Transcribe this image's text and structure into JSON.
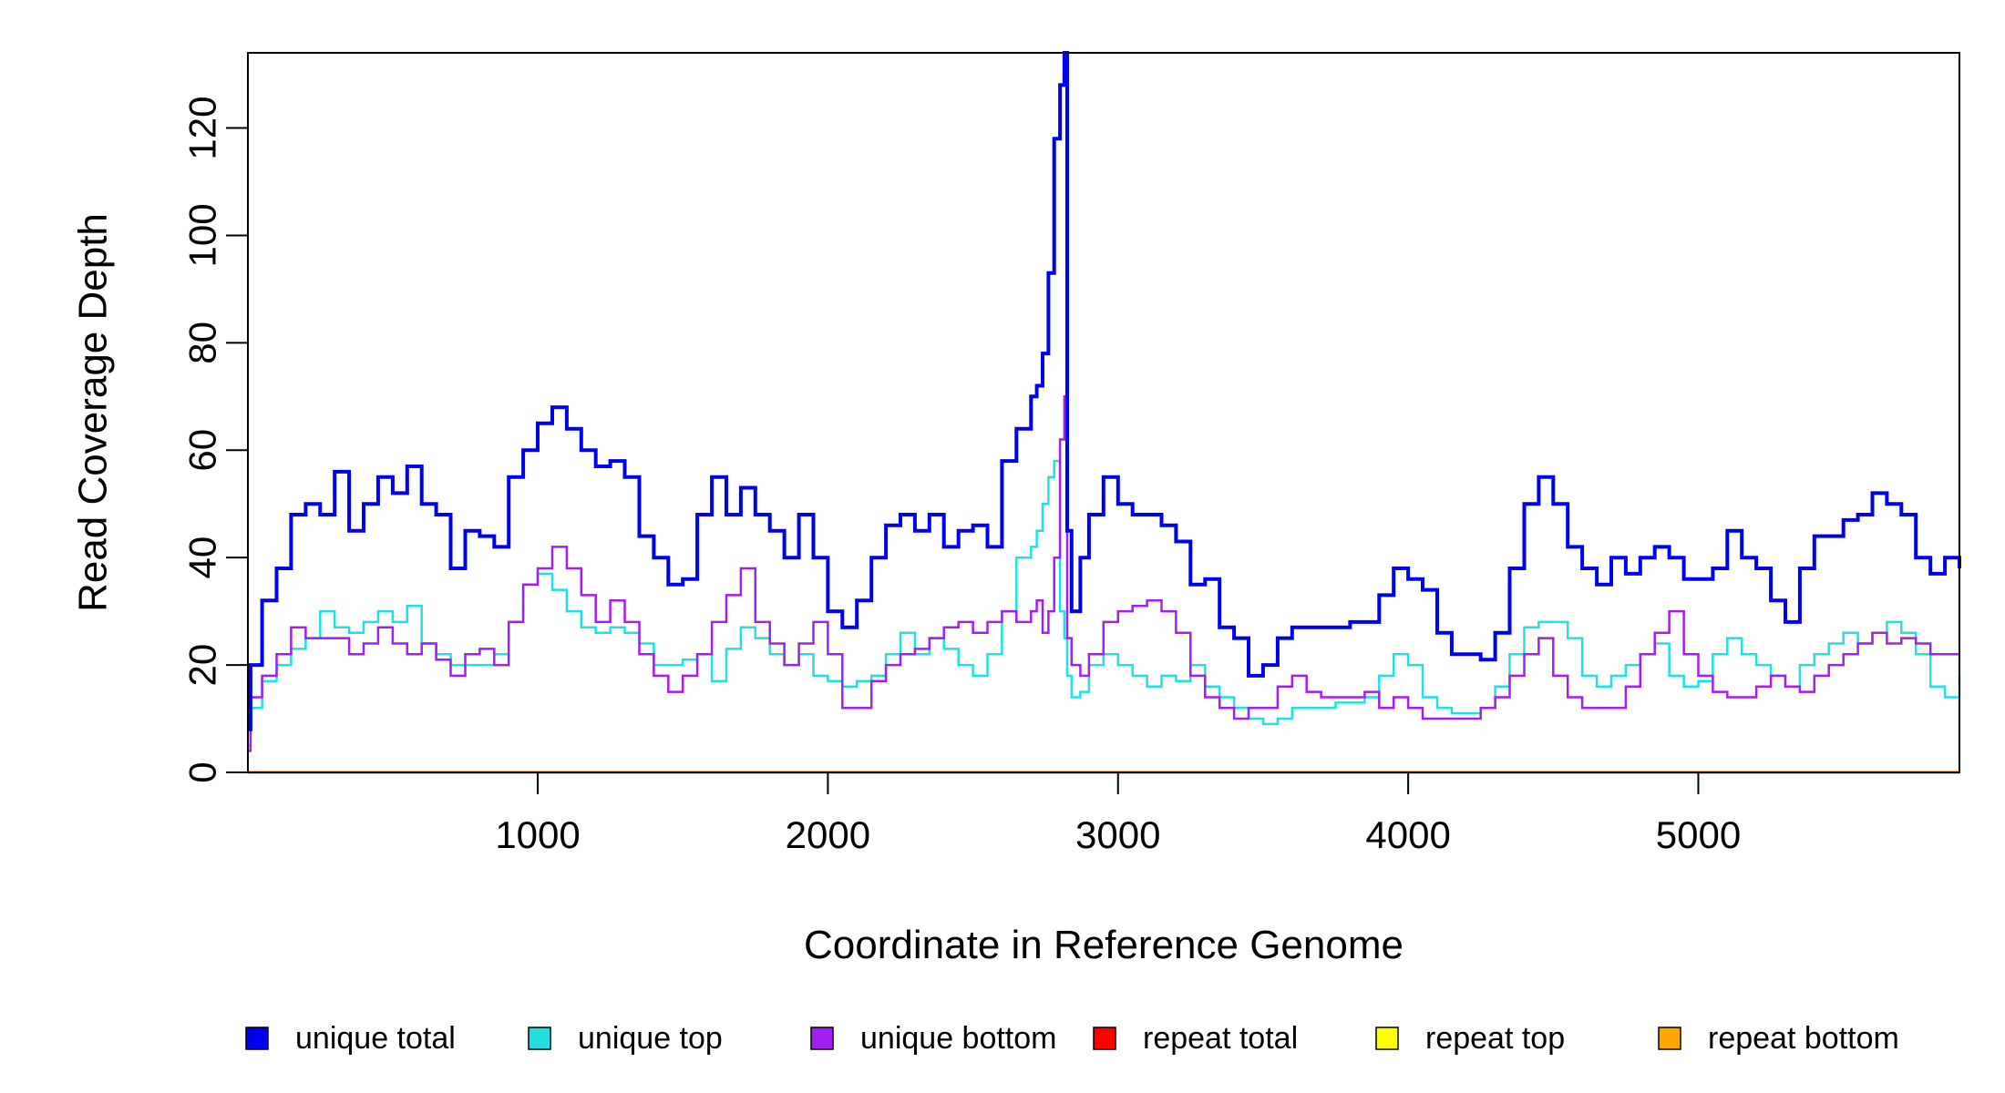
{
  "chart_data": {
    "type": "line",
    "title": "",
    "xlabel": "Coordinate in Reference Genome",
    "ylabel": "Read Coverage Depth",
    "xlim": [
      1,
      5900
    ],
    "ylim": [
      0,
      134
    ],
    "xticks": [
      1000,
      2000,
      3000,
      4000,
      5000
    ],
    "yticks": [
      0,
      20,
      40,
      60,
      80,
      100,
      120
    ],
    "xtick_labels": [
      "1000",
      "2000",
      "3000",
      "4000",
      "5000"
    ],
    "ytick_labels": [
      "0",
      "20",
      "40",
      "60",
      "80",
      "100",
      "120"
    ],
    "grid": false,
    "legend_position": "bottom",
    "series": [
      {
        "name": "unique total",
        "color": "#0000ee",
        "x": [
          1,
          10,
          50,
          100,
          150,
          200,
          250,
          300,
          350,
          400,
          450,
          500,
          550,
          600,
          650,
          700,
          750,
          800,
          850,
          900,
          950,
          1000,
          1050,
          1100,
          1150,
          1200,
          1250,
          1300,
          1350,
          1400,
          1450,
          1500,
          1550,
          1600,
          1650,
          1700,
          1750,
          1800,
          1850,
          1900,
          1950,
          2000,
          2050,
          2100,
          2150,
          2200,
          2250,
          2300,
          2350,
          2400,
          2450,
          2500,
          2550,
          2600,
          2650,
          2700,
          2720,
          2740,
          2760,
          2780,
          2800,
          2815,
          2825,
          2840,
          2870,
          2900,
          2950,
          3000,
          3050,
          3100,
          3150,
          3200,
          3250,
          3300,
          3350,
          3400,
          3450,
          3500,
          3550,
          3600,
          3650,
          3700,
          3750,
          3800,
          3850,
          3900,
          3950,
          4000,
          4050,
          4100,
          4150,
          4200,
          4250,
          4300,
          4350,
          4400,
          4450,
          4500,
          4550,
          4600,
          4650,
          4700,
          4750,
          4800,
          4850,
          4900,
          4950,
          5000,
          5050,
          5100,
          5150,
          5200,
          5250,
          5300,
          5350,
          5400,
          5450,
          5500,
          5550,
          5600,
          5650,
          5700,
          5750,
          5800,
          5850,
          5900
        ],
        "y": [
          8,
          20,
          32,
          38,
          48,
          50,
          48,
          56,
          45,
          50,
          55,
          52,
          57,
          50,
          48,
          38,
          45,
          44,
          42,
          55,
          60,
          65,
          68,
          64,
          60,
          57,
          58,
          55,
          44,
          40,
          35,
          36,
          48,
          55,
          48,
          53,
          48,
          45,
          40,
          48,
          40,
          30,
          27,
          32,
          40,
          46,
          48,
          45,
          48,
          42,
          45,
          46,
          42,
          58,
          64,
          70,
          72,
          78,
          93,
          118,
          128,
          134,
          45,
          30,
          40,
          48,
          55,
          50,
          48,
          48,
          46,
          43,
          35,
          36,
          27,
          25,
          18,
          20,
          25,
          27,
          27,
          27,
          27,
          28,
          28,
          33,
          38,
          36,
          34,
          26,
          22,
          22,
          21,
          26,
          38,
          50,
          55,
          50,
          42,
          38,
          35,
          40,
          37,
          40,
          42,
          40,
          36,
          36,
          38,
          45,
          40,
          38,
          32,
          28,
          38,
          44,
          44,
          47,
          48,
          52,
          50,
          48,
          40,
          37,
          40,
          38
        ]
      },
      {
        "name": "unique top",
        "color": "#22e0e0",
        "x": [
          1,
          10,
          50,
          100,
          150,
          200,
          250,
          300,
          350,
          400,
          450,
          500,
          550,
          600,
          650,
          700,
          750,
          800,
          850,
          900,
          950,
          1000,
          1050,
          1100,
          1150,
          1200,
          1250,
          1300,
          1350,
          1400,
          1450,
          1500,
          1550,
          1600,
          1650,
          1700,
          1750,
          1800,
          1850,
          1900,
          1950,
          2000,
          2050,
          2100,
          2150,
          2200,
          2250,
          2300,
          2350,
          2400,
          2450,
          2500,
          2550,
          2600,
          2650,
          2700,
          2720,
          2740,
          2760,
          2780,
          2800,
          2815,
          2825,
          2840,
          2870,
          2900,
          2950,
          3000,
          3050,
          3100,
          3150,
          3200,
          3250,
          3300,
          3350,
          3400,
          3450,
          3500,
          3550,
          3600,
          3650,
          3700,
          3750,
          3800,
          3850,
          3900,
          3950,
          4000,
          4050,
          4100,
          4150,
          4200,
          4250,
          4300,
          4350,
          4400,
          4450,
          4500,
          4550,
          4600,
          4650,
          4700,
          4750,
          4800,
          4850,
          4900,
          4950,
          5000,
          5050,
          5100,
          5150,
          5200,
          5250,
          5300,
          5350,
          5400,
          5450,
          5500,
          5550,
          5600,
          5650,
          5700,
          5750,
          5800,
          5850,
          5900
        ],
        "y": [
          5,
          12,
          17,
          20,
          23,
          25,
          30,
          27,
          26,
          28,
          30,
          28,
          31,
          24,
          22,
          20,
          20,
          20,
          22,
          28,
          35,
          37,
          34,
          30,
          27,
          26,
          27,
          26,
          24,
          20,
          20,
          21,
          22,
          17,
          23,
          27,
          25,
          22,
          20,
          22,
          18,
          17,
          16,
          17,
          18,
          22,
          26,
          22,
          25,
          23,
          20,
          18,
          22,
          30,
          40,
          42,
          45,
          50,
          55,
          58,
          30,
          25,
          18,
          14,
          15,
          20,
          22,
          20,
          18,
          16,
          18,
          17,
          20,
          16,
          14,
          12,
          10,
          9,
          10,
          12,
          12,
          12,
          13,
          13,
          14,
          18,
          22,
          20,
          14,
          12,
          11,
          11,
          12,
          16,
          22,
          27,
          28,
          28,
          25,
          18,
          16,
          18,
          20,
          22,
          24,
          18,
          16,
          17,
          22,
          25,
          22,
          20,
          18,
          16,
          20,
          22,
          24,
          26,
          24,
          26,
          28,
          26,
          22,
          16,
          14,
          18
        ]
      },
      {
        "name": "unique bottom",
        "color": "#a020f0",
        "x": [
          1,
          10,
          50,
          100,
          150,
          200,
          250,
          300,
          350,
          400,
          450,
          500,
          550,
          600,
          650,
          700,
          750,
          800,
          850,
          900,
          950,
          1000,
          1050,
          1100,
          1150,
          1200,
          1250,
          1300,
          1350,
          1400,
          1450,
          1500,
          1550,
          1600,
          1650,
          1700,
          1750,
          1800,
          1850,
          1900,
          1950,
          2000,
          2050,
          2100,
          2150,
          2200,
          2250,
          2300,
          2350,
          2400,
          2450,
          2500,
          2550,
          2600,
          2650,
          2700,
          2720,
          2740,
          2760,
          2780,
          2800,
          2815,
          2825,
          2840,
          2870,
          2900,
          2950,
          3000,
          3050,
          3100,
          3150,
          3200,
          3250,
          3300,
          3350,
          3400,
          3450,
          3500,
          3550,
          3600,
          3650,
          3700,
          3750,
          3800,
          3850,
          3900,
          3950,
          4000,
          4050,
          4100,
          4150,
          4200,
          4250,
          4300,
          4350,
          4400,
          4450,
          4500,
          4550,
          4600,
          4650,
          4700,
          4750,
          4800,
          4850,
          4900,
          4950,
          5000,
          5050,
          5100,
          5150,
          5200,
          5250,
          5300,
          5350,
          5400,
          5450,
          5500,
          5550,
          5600,
          5650,
          5700,
          5750,
          5800,
          5850,
          5900
        ],
        "y": [
          4,
          14,
          18,
          22,
          27,
          25,
          25,
          25,
          22,
          24,
          27,
          24,
          22,
          24,
          21,
          18,
          22,
          23,
          20,
          28,
          35,
          38,
          42,
          38,
          33,
          28,
          32,
          28,
          22,
          18,
          15,
          18,
          22,
          28,
          33,
          38,
          28,
          24,
          20,
          24,
          28,
          22,
          12,
          12,
          17,
          20,
          22,
          23,
          25,
          27,
          28,
          26,
          28,
          30,
          28,
          30,
          32,
          26,
          30,
          40,
          62,
          70,
          25,
          20,
          18,
          22,
          28,
          30,
          31,
          32,
          30,
          26,
          18,
          14,
          12,
          10,
          12,
          12,
          16,
          18,
          15,
          14,
          14,
          14,
          15,
          12,
          14,
          12,
          10,
          10,
          10,
          10,
          12,
          14,
          18,
          22,
          25,
          18,
          14,
          12,
          12,
          12,
          16,
          22,
          26,
          30,
          22,
          18,
          15,
          14,
          14,
          16,
          18,
          16,
          15,
          18,
          20,
          22,
          24,
          26,
          24,
          25,
          24,
          22,
          22,
          22
        ]
      },
      {
        "name": "repeat total",
        "color": "#ff0000",
        "x": [
          1,
          5900
        ],
        "y": [
          0,
          0
        ]
      },
      {
        "name": "repeat top",
        "color": "#ffff00",
        "x": [
          1,
          5900
        ],
        "y": [
          0,
          0
        ]
      },
      {
        "name": "repeat bottom",
        "color": "#ffa500",
        "x": [
          1,
          5900
        ],
        "y": [
          0,
          0
        ]
      }
    ]
  }
}
